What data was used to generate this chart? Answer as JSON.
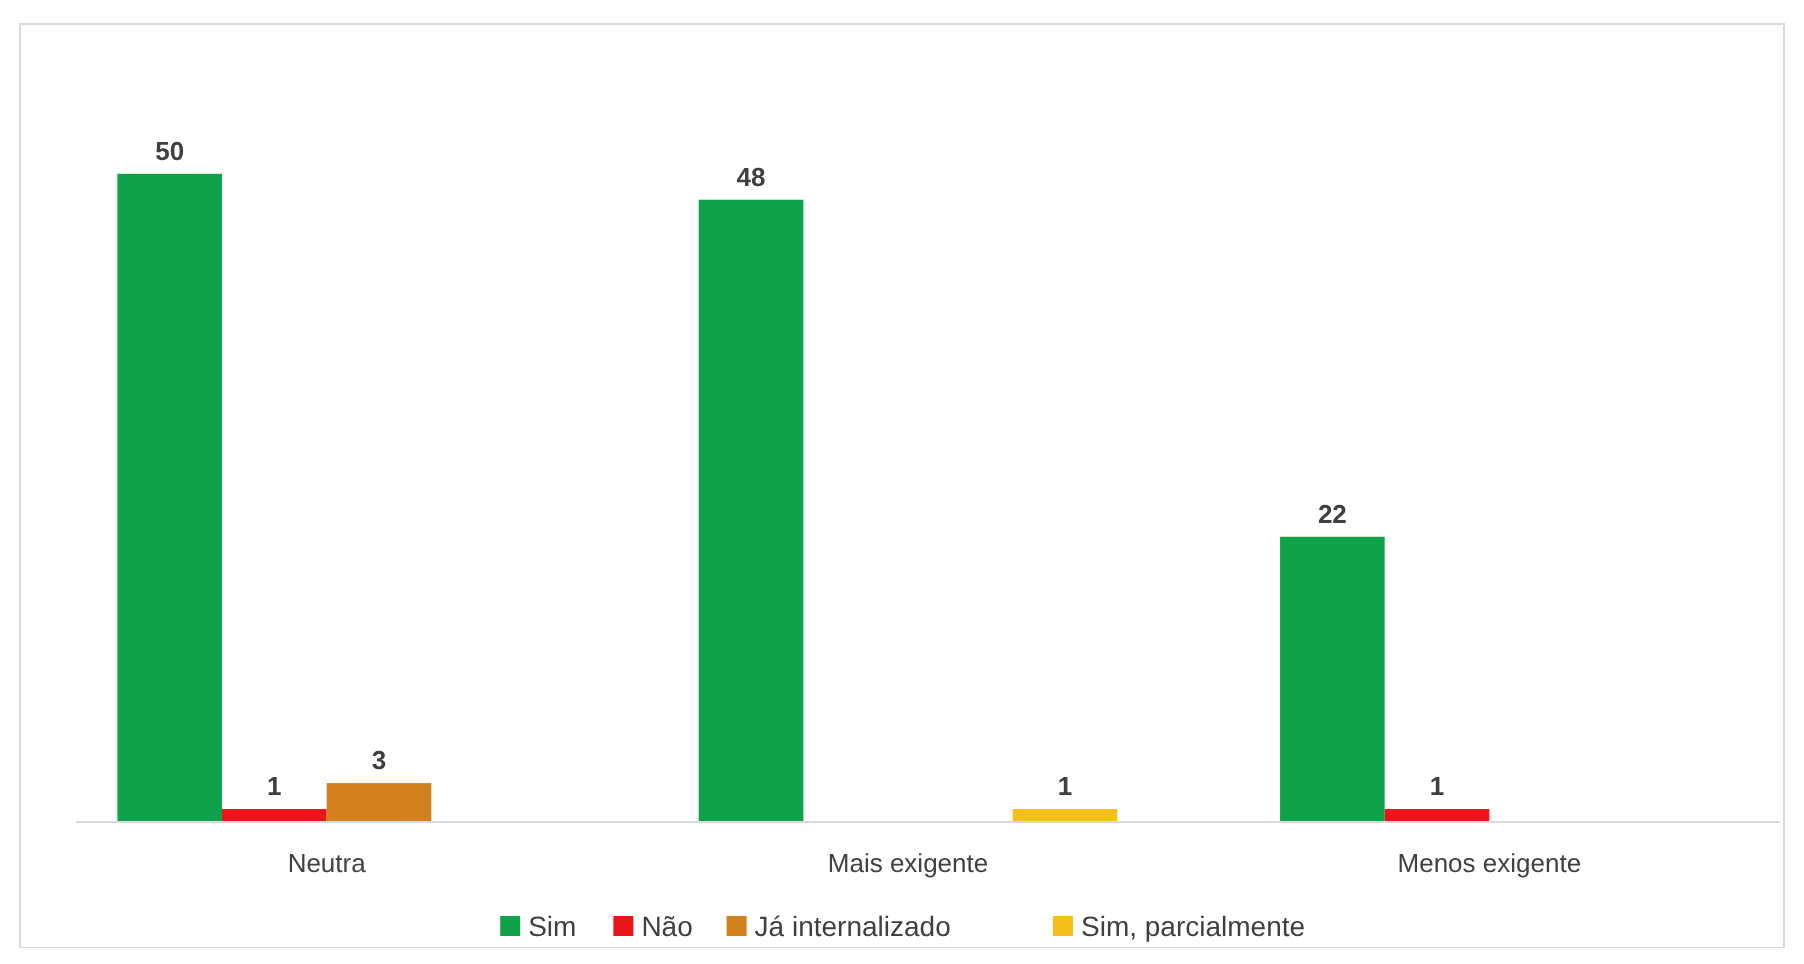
{
  "chart_data": {
    "type": "bar",
    "categories": [
      "Neutra",
      "Mais exigente",
      "Menos exigente"
    ],
    "series": [
      {
        "name": "Sim",
        "color": "#0fa24a",
        "values": [
          50,
          48,
          22
        ]
      },
      {
        "name": "Não",
        "color": "#e8151b",
        "values": [
          1,
          null,
          1
        ]
      },
      {
        "name": "Já internalizado",
        "color": "#d27f1e",
        "values": [
          3,
          null,
          null
        ]
      },
      {
        "name": "Sim, parcialmente",
        "color": "#f3c01a",
        "values": [
          null,
          1,
          null
        ]
      }
    ],
    "data_labels": true,
    "legend": "bottom",
    "grid": false
  }
}
